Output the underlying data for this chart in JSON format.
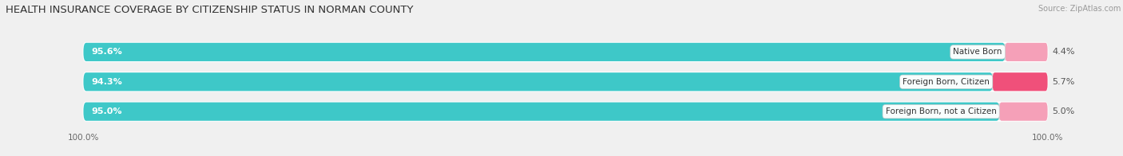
{
  "title": "HEALTH INSURANCE COVERAGE BY CITIZENSHIP STATUS IN NORMAN COUNTY",
  "source": "Source: ZipAtlas.com",
  "categories": [
    "Native Born",
    "Foreign Born, Citizen",
    "Foreign Born, not a Citizen"
  ],
  "with_coverage": [
    95.6,
    94.3,
    95.0
  ],
  "without_coverage": [
    4.4,
    5.7,
    5.0
  ],
  "color_with": "#3ec8c8",
  "color_without_0": "#f5a0b8",
  "color_without_1": "#f0507a",
  "color_without_2": "#f5a0b8",
  "bg_color": "#f0f0f0",
  "bar_bg": "#dcdcdc",
  "title_fontsize": 9.5,
  "source_fontsize": 7,
  "tick_fontsize": 7.5,
  "label_fontsize": 7.5,
  "annotation_fontsize": 8,
  "figsize": [
    14.06,
    1.96
  ],
  "dpi": 100
}
